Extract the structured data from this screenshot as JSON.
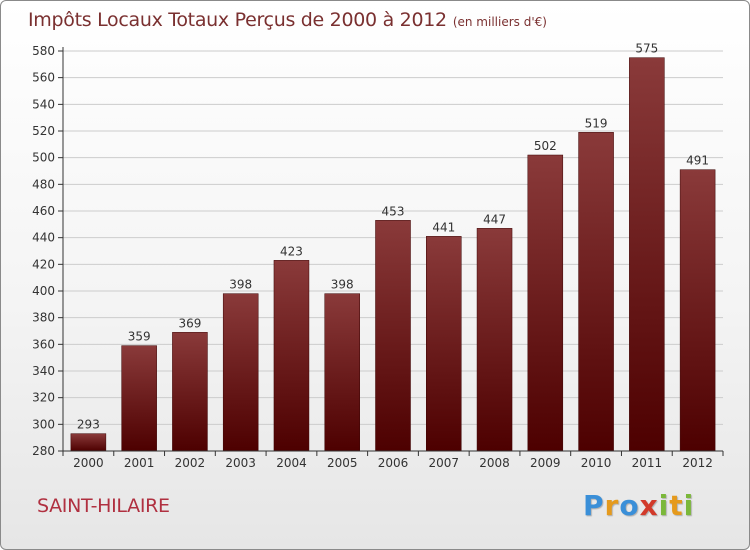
{
  "header": {
    "title": "Impôts Locaux Totaux Perçus de 2000 à 2012",
    "subtitle": "(en milliers d'€)"
  },
  "footer": {
    "commune": "SAINT-HILAIRE",
    "logo_text": "Proxiti",
    "logo_letters": [
      {
        "ch": "P",
        "color": "#3a8fd8"
      },
      {
        "ch": "r",
        "color": "#e59a1d"
      },
      {
        "ch": "o",
        "color": "#3a8fd8"
      },
      {
        "ch": "x",
        "color": "#d23a2a"
      },
      {
        "ch": "i",
        "color": "#7bb83a"
      },
      {
        "ch": "t",
        "color": "#e59a1d"
      },
      {
        "ch": "i",
        "color": "#7bb83a"
      }
    ]
  },
  "colors": {
    "bar_top": "#8a3a3a",
    "bar_bottom": "#4d0000",
    "grid": "#cccccc",
    "axis": "#333333",
    "title": "#7a3030",
    "commune": "#b03040"
  },
  "chart_data": {
    "type": "bar",
    "title": "Impôts Locaux Totaux Perçus de 2000 à 2012",
    "xlabel": "",
    "ylabel": "",
    "categories": [
      "2000",
      "2001",
      "2002",
      "2003",
      "2004",
      "2005",
      "2006",
      "2007",
      "2008",
      "2009",
      "2010",
      "2011",
      "2012"
    ],
    "values": [
      293,
      359,
      369,
      398,
      423,
      398,
      453,
      441,
      447,
      502,
      519,
      575,
      491
    ],
    "ylim": [
      280,
      580
    ],
    "yticks": [
      280,
      300,
      320,
      340,
      360,
      380,
      400,
      420,
      440,
      460,
      480,
      500,
      520,
      540,
      560,
      580
    ],
    "grid": true,
    "legend": "none"
  }
}
